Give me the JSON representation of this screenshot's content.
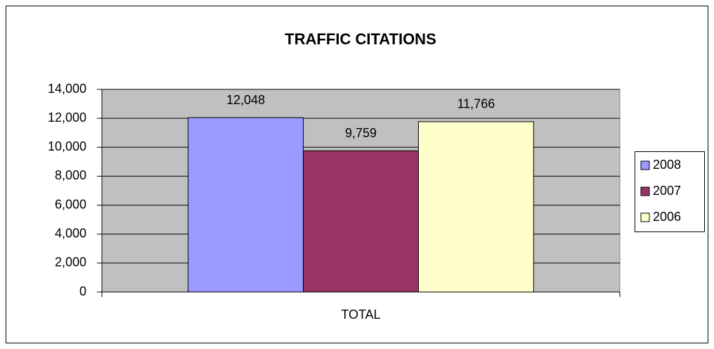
{
  "chart_data": {
    "type": "bar",
    "title": "TRAFFIC CITATIONS",
    "categories": [
      "TOTAL"
    ],
    "series": [
      {
        "name": "2008",
        "color": "#9999ff",
        "values": [
          12048
        ],
        "value_labels": [
          "12,048"
        ]
      },
      {
        "name": "2007",
        "color": "#993366",
        "values": [
          9759
        ],
        "value_labels": [
          "9,759"
        ]
      },
      {
        "name": "2006",
        "color": "#ffffcc",
        "values": [
          11766
        ],
        "value_labels": [
          "11,766"
        ]
      }
    ],
    "ylim": [
      0,
      14000
    ],
    "yticks": [
      0,
      {
        "value": 2000,
        "label": "2,000"
      },
      {
        "value": 4000,
        "label": "4,000"
      },
      {
        "value": 6000,
        "label": "6,000"
      },
      {
        "value": 8000,
        "label": "8,000"
      },
      {
        "value": 10000,
        "label": "10,000"
      },
      {
        "value": 12000,
        "label": "12,000"
      },
      {
        "value": 14000,
        "label": "14,000"
      }
    ],
    "grid": true,
    "legend": "right"
  }
}
